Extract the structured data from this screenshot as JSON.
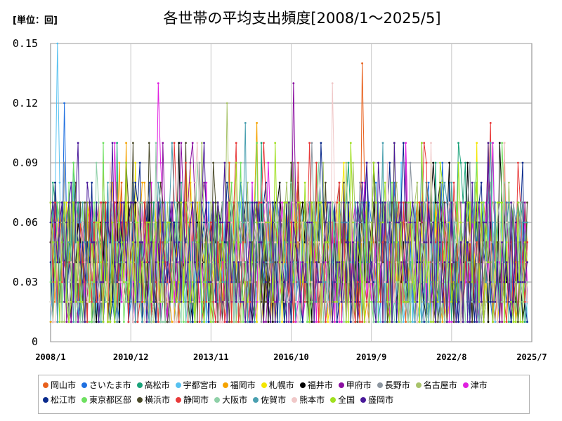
{
  "chart_data": {
    "type": "line",
    "title": "各世帯の平均支出頻度[2008/1～2025/5]",
    "unit_label": "[単位：回]",
    "xlabel": "",
    "ylabel": "",
    "x_range": [
      "2008/1",
      "2025/7"
    ],
    "x_ticks": [
      "2008/1",
      "2010/12",
      "2013/11",
      "2016/10",
      "2019/9",
      "2022/8",
      "2025/7"
    ],
    "y_ticks": [
      "0",
      "0.03",
      "0.06",
      "0.09",
      "0.12",
      "0.15"
    ],
    "ylim": [
      0,
      0.15
    ],
    "grid": true,
    "legend_position": "bottom",
    "series": [
      {
        "name": "岡山市",
        "color": "#e8601c",
        "peak": 0.14
      },
      {
        "name": "さいたま市",
        "color": "#1f6fe0",
        "peak": 0.12
      },
      {
        "name": "高松市",
        "color": "#1aa37a",
        "peak": 0.1
      },
      {
        "name": "宇都宮市",
        "color": "#56c1f0",
        "peak": 0.15
      },
      {
        "name": "福岡市",
        "color": "#f5a300",
        "peak": 0.11
      },
      {
        "name": "札幌市",
        "color": "#f4e600",
        "peak": 0.09
      },
      {
        "name": "福井市",
        "color": "#000000",
        "peak": 0.1
      },
      {
        "name": "甲府市",
        "color": "#8b0fa0",
        "peak": 0.13
      },
      {
        "name": "長野市",
        "color": "#8c96a0",
        "peak": 0.09
      },
      {
        "name": "名古屋市",
        "color": "#a8c36a",
        "peak": 0.12
      },
      {
        "name": "津市",
        "color": "#e020e0",
        "peak": 0.13
      },
      {
        "name": "松江市",
        "color": "#0a2a8c",
        "peak": 0.1
      },
      {
        "name": "東京都区部",
        "color": "#6ee060",
        "peak": 0.09
      },
      {
        "name": "横浜市",
        "color": "#4a4a2a",
        "peak": 0.1
      },
      {
        "name": "静岡市",
        "color": "#e83a3a",
        "peak": 0.11
      },
      {
        "name": "大阪市",
        "color": "#8fd0a8",
        "peak": 0.09
      },
      {
        "name": "佐賀市",
        "color": "#4aa0b0",
        "peak": 0.11
      },
      {
        "name": "熊本市",
        "color": "#f0c8c8",
        "peak": 0.13
      },
      {
        "name": "全国",
        "color": "#a0e020",
        "peak": 0.09
      },
      {
        "name": "盛岡市",
        "color": "#4a1a9a",
        "peak": 0.1
      }
    ]
  }
}
